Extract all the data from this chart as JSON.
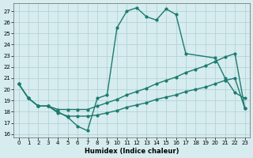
{
  "xlabel": "Humidex (Indice chaleur)",
  "xlim": [
    -0.5,
    23.5
  ],
  "ylim": [
    15.7,
    27.7
  ],
  "yticks": [
    16,
    17,
    18,
    19,
    20,
    21,
    22,
    23,
    24,
    25,
    26,
    27
  ],
  "xticks": [
    0,
    1,
    2,
    3,
    4,
    5,
    6,
    7,
    8,
    9,
    10,
    11,
    12,
    13,
    14,
    15,
    16,
    17,
    18,
    19,
    20,
    21,
    22,
    23
  ],
  "line_color": "#1b7b70",
  "bg_color": "#d6ecee",
  "grid_color": "#aecfd5",
  "line1_x": [
    0,
    1,
    2,
    3,
    4,
    5,
    6,
    7,
    8,
    9,
    10,
    11,
    12,
    13,
    14,
    15,
    16,
    17,
    20,
    21,
    22,
    23
  ],
  "line1_y": [
    20.5,
    19.2,
    18.5,
    18.5,
    18.0,
    17.5,
    16.7,
    16.3,
    19.2,
    19.5,
    25.5,
    27.0,
    27.3,
    26.5,
    26.2,
    27.2,
    26.7,
    23.2,
    22.8,
    21.0,
    19.7,
    19.2
  ],
  "line2_x": [
    0,
    1,
    2,
    3,
    4,
    5,
    6,
    7,
    8,
    9,
    10,
    11,
    12,
    13,
    14,
    15,
    16,
    17,
    18,
    19,
    20,
    21,
    22,
    23
  ],
  "line2_y": [
    20.5,
    19.2,
    18.5,
    18.5,
    18.2,
    18.2,
    18.2,
    18.2,
    18.5,
    18.8,
    19.1,
    19.5,
    19.8,
    20.1,
    20.5,
    20.8,
    21.1,
    21.5,
    21.8,
    22.1,
    22.5,
    22.9,
    23.2,
    18.3
  ],
  "line3_x": [
    0,
    1,
    2,
    3,
    4,
    5,
    6,
    7,
    8,
    9,
    10,
    11,
    12,
    13,
    14,
    15,
    16,
    17,
    18,
    19,
    20,
    21,
    22,
    23
  ],
  "line3_y": [
    20.5,
    19.2,
    18.5,
    18.5,
    17.9,
    17.6,
    17.6,
    17.6,
    17.7,
    17.9,
    18.1,
    18.4,
    18.6,
    18.8,
    19.1,
    19.3,
    19.5,
    19.8,
    20.0,
    20.2,
    20.5,
    20.8,
    21.0,
    18.3
  ]
}
